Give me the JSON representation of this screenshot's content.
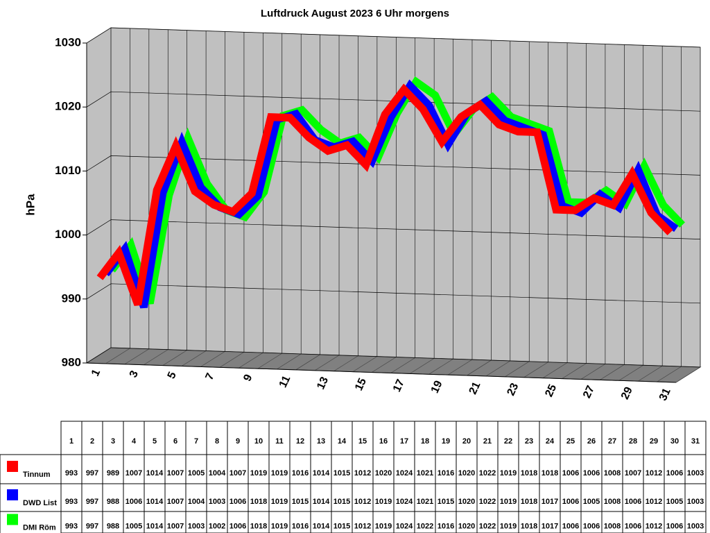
{
  "chart_data": {
    "type": "line",
    "title": "Luftdruck August 2023 6 Uhr morgens",
    "ylabel": "hPa",
    "categories": [
      "1",
      "2",
      "3",
      "4",
      "5",
      "6",
      "7",
      "8",
      "9",
      "10",
      "11",
      "12",
      "13",
      "14",
      "15",
      "16",
      "17",
      "18",
      "19",
      "20",
      "21",
      "22",
      "23",
      "24",
      "25",
      "26",
      "27",
      "28",
      "29",
      "30",
      "31"
    ],
    "ylim": [
      980,
      1030
    ],
    "yticks": [
      980,
      990,
      1000,
      1010,
      1020,
      1030
    ],
    "grid": true,
    "series": [
      {
        "name": "Tinnum",
        "color": "#ff0000",
        "values": [
          993,
          997,
          989,
          1007,
          1014,
          1007,
          1005,
          1004,
          1007,
          1019,
          1019,
          1016,
          1014,
          1015,
          1012,
          1020,
          1024,
          1021,
          1016,
          1020,
          1022,
          1019,
          1018,
          1018,
          1006,
          1006,
          1008,
          1007,
          1012,
          1006,
          1003
        ]
      },
      {
        "name": "DWD List",
        "color": "#0000ff",
        "values": [
          993,
          997,
          988,
          1006,
          1014,
          1007,
          1004,
          1003,
          1006,
          1018,
          1019,
          1015,
          1014,
          1015,
          1012,
          1019,
          1024,
          1021,
          1015,
          1020,
          1022,
          1019,
          1018,
          1017,
          1006,
          1005,
          1008,
          1006,
          1012,
          1005,
          1003
        ]
      },
      {
        "name": "DMI Röm",
        "color": "#00ff00",
        "values": [
          993,
          997,
          988,
          1005,
          1014,
          1007,
          1003,
          1002,
          1006,
          1018,
          1019,
          1016,
          1014,
          1015,
          1012,
          1019,
          1024,
          1022,
          1016,
          1020,
          1022,
          1019,
          1018,
          1017,
          1006,
          1006,
          1008,
          1006,
          1012,
          1006,
          1003
        ]
      }
    ]
  }
}
